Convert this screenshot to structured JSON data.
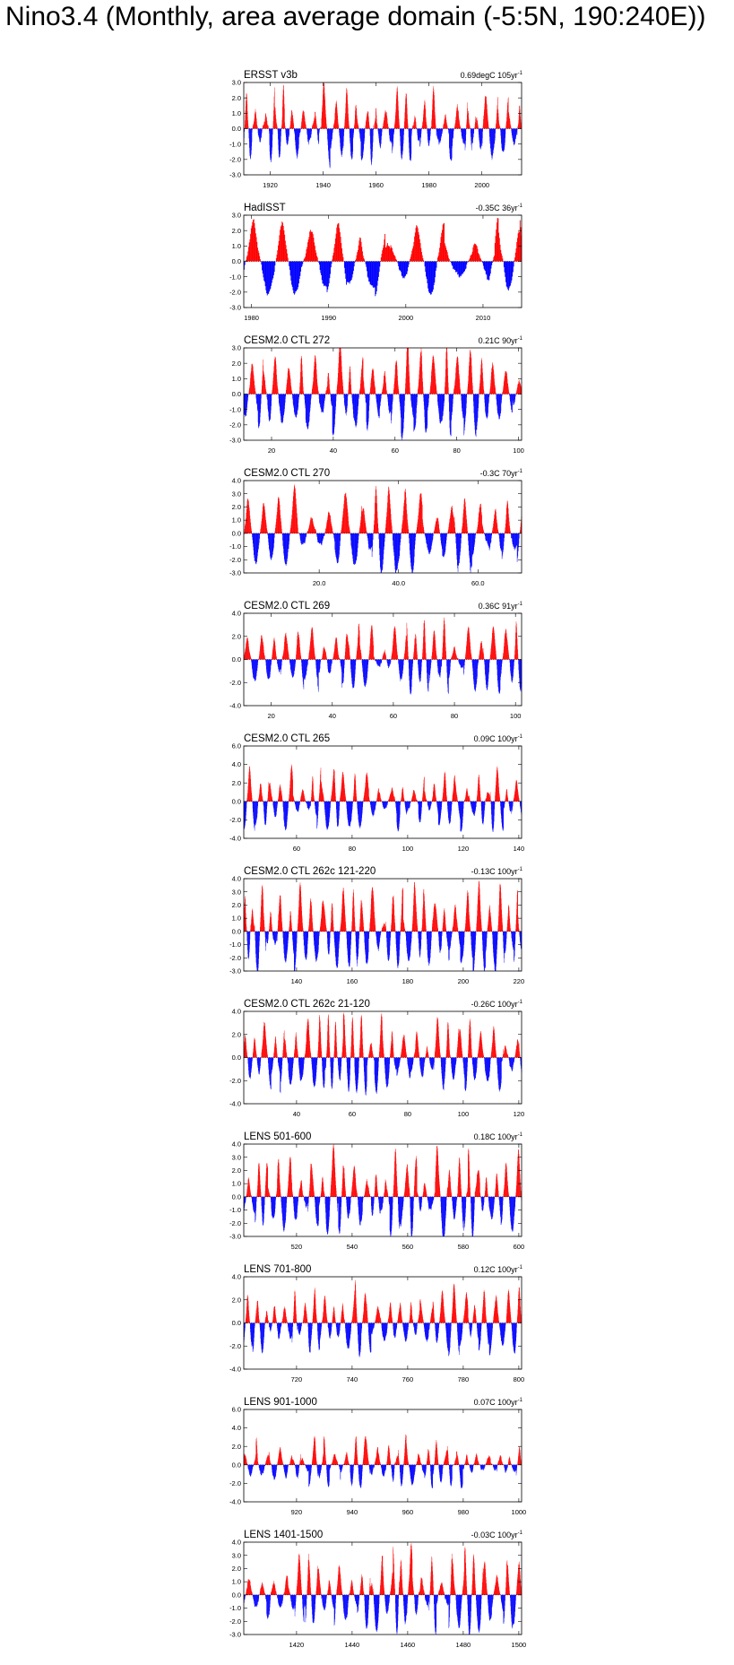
{
  "page_title": "Nino3.4 (Monthly, area average domain (-5:5N, 190:240E))",
  "colors": {
    "positive": "#ff0000",
    "negative": "#0000ff",
    "zero_line": "#000000"
  },
  "chart_data": [
    {
      "type": "bar",
      "title": "ERSST v3b",
      "trend": "0.69degC 105yr",
      "trend_unit_sup": "-1",
      "xlim": [
        1910,
        2015
      ],
      "xticks": [
        1920,
        1940,
        1960,
        1980,
        2000
      ],
      "xtick_labels": [
        "1920",
        "1940",
        "1960",
        "1980",
        "2000"
      ],
      "ylim": [
        -3,
        3
      ],
      "yticks": [
        -3,
        -2,
        -1,
        0,
        1,
        2,
        3
      ],
      "ytick_labels": [
        "-3.0",
        "-2.0",
        "-1.0",
        "0.0",
        "1.0",
        "2.0",
        "3.0"
      ],
      "amp": 1.3,
      "seed": 11
    },
    {
      "type": "bar",
      "title": "HadISST",
      "trend": "-0.35C 36yr",
      "trend_unit_sup": "-1",
      "xlim": [
        1979,
        2015
      ],
      "xticks": [
        1980,
        1990,
        2000,
        2010
      ],
      "xtick_labels": [
        "1980",
        "1990",
        "2000",
        "2010"
      ],
      "ylim": [
        -3,
        3
      ],
      "yticks": [
        -3,
        -2,
        -1,
        0,
        1,
        2,
        3
      ],
      "ytick_labels": [
        "-3.0",
        "-2.0",
        "-1.0",
        "0.0",
        "1.0",
        "2.0",
        "3.0"
      ],
      "amp": 1.8,
      "seed": 23
    },
    {
      "type": "bar",
      "title": "CESM2.0 CTL 272",
      "trend": "0.21C 90yr",
      "trend_unit_sup": "-1",
      "xlim": [
        11,
        101
      ],
      "xticks": [
        20,
        40,
        60,
        80,
        100
      ],
      "xtick_labels": [
        "20",
        "40",
        "60",
        "80",
        "100"
      ],
      "ylim": [
        -3,
        3
      ],
      "yticks": [
        -3,
        -2,
        -1,
        0,
        1,
        2,
        3
      ],
      "ytick_labels": [
        "-3.0",
        "-2.0",
        "-1.0",
        "0.0",
        "1.0",
        "2.0",
        "3.0"
      ],
      "amp": 1.7,
      "seed": 37
    },
    {
      "type": "bar",
      "title": "CESM2.0 CTL 270",
      "trend": "-0.3C 70yr",
      "trend_unit_sup": "-1",
      "xlim": [
        1,
        71
      ],
      "xticks": [
        20,
        40,
        60
      ],
      "xtick_labels": [
        "20.0",
        "40.0",
        "60.0"
      ],
      "ylim": [
        -3,
        4
      ],
      "yticks": [
        -3,
        -2,
        -1,
        0,
        1,
        2,
        3,
        4
      ],
      "ytick_labels": [
        "-3.0",
        "-2.0",
        "-1.0",
        "0.0",
        "1.0",
        "2.0",
        "3.0",
        "4.0"
      ],
      "amp": 1.7,
      "seed": 41
    },
    {
      "type": "bar",
      "title": "CESM2.0 CTL 269",
      "trend": "0.36C 91yr",
      "trend_unit_sup": "-1",
      "xlim": [
        11,
        102
      ],
      "xticks": [
        20,
        40,
        60,
        80,
        100
      ],
      "xtick_labels": [
        "20",
        "40",
        "60",
        "80",
        "100"
      ],
      "ylim": [
        -4,
        4
      ],
      "yticks": [
        -4,
        -2,
        0,
        2,
        4
      ],
      "ytick_labels": [
        "-4.0",
        "-2.0",
        "0.0",
        "2.0",
        "4.0"
      ],
      "amp": 1.8,
      "seed": 53
    },
    {
      "type": "bar",
      "title": "CESM2.0 CTL 265",
      "trend": "0.09C 100yr",
      "trend_unit_sup": "-1",
      "xlim": [
        41,
        141
      ],
      "xticks": [
        60,
        80,
        100,
        120,
        140
      ],
      "xtick_labels": [
        "60",
        "80",
        "100",
        "120",
        "140"
      ],
      "ylim": [
        -4,
        6
      ],
      "yticks": [
        -4,
        -2,
        0,
        2,
        4,
        6
      ],
      "ytick_labels": [
        "-4.0",
        "-2.0",
        "0.0",
        "2.0",
        "4.0",
        "6.0"
      ],
      "amp": 1.8,
      "seed": 61
    },
    {
      "type": "bar",
      "title": "CESM2.0 CTL 262c 121-220",
      "trend": "-0.13C 100yr",
      "trend_unit_sup": "-1",
      "xlim": [
        121,
        221
      ],
      "xticks": [
        140,
        160,
        180,
        200,
        220
      ],
      "xtick_labels": [
        "140",
        "160",
        "180",
        "200",
        "220"
      ],
      "ylim": [
        -3,
        4
      ],
      "yticks": [
        -3,
        -2,
        -1,
        0,
        1,
        2,
        3,
        4
      ],
      "ytick_labels": [
        "-3.0",
        "-2.0",
        "-1.0",
        "0.0",
        "1.0",
        "2.0",
        "3.0",
        "4.0"
      ],
      "amp": 1.8,
      "seed": 71
    },
    {
      "type": "bar",
      "title": "CESM2.0 CTL 262c 21-120",
      "trend": "-0.26C 100yr",
      "trend_unit_sup": "-1",
      "xlim": [
        21,
        121
      ],
      "xticks": [
        40,
        60,
        80,
        100,
        120
      ],
      "xtick_labels": [
        "40",
        "60",
        "80",
        "100",
        "120"
      ],
      "ylim": [
        -4,
        4
      ],
      "yticks": [
        -4,
        -2,
        0,
        2,
        4
      ],
      "ytick_labels": [
        "-4.0",
        "-2.0",
        "0.0",
        "2.0",
        "4.0"
      ],
      "amp": 1.9,
      "seed": 83
    },
    {
      "type": "bar",
      "title": "LENS 501-600",
      "trend": "0.18C 100yr",
      "trend_unit_sup": "-1",
      "xlim": [
        501,
        601
      ],
      "xticks": [
        520,
        540,
        560,
        580,
        600
      ],
      "xtick_labels": [
        "520",
        "540",
        "560",
        "580",
        "600"
      ],
      "ylim": [
        -3,
        4
      ],
      "yticks": [
        -3,
        -2,
        -1,
        0,
        1,
        2,
        3,
        4
      ],
      "ytick_labels": [
        "-3.0",
        "-2.0",
        "-1.0",
        "0.0",
        "1.0",
        "2.0",
        "3.0",
        "4.0"
      ],
      "amp": 1.8,
      "seed": 97
    },
    {
      "type": "bar",
      "title": "LENS 701-800",
      "trend": "0.12C 100yr",
      "trend_unit_sup": "-1",
      "xlim": [
        701,
        801
      ],
      "xticks": [
        720,
        740,
        760,
        780,
        800
      ],
      "xtick_labels": [
        "720",
        "740",
        "760",
        "780",
        "800"
      ],
      "ylim": [
        -4,
        4
      ],
      "yticks": [
        -4,
        -2,
        0,
        2,
        4
      ],
      "ytick_labels": [
        "-4.0",
        "-2.0",
        "0.0",
        "2.0",
        "4.0"
      ],
      "amp": 1.7,
      "seed": 103
    },
    {
      "type": "bar",
      "title": "LENS 901-1000",
      "trend": "0.07C 100yr",
      "trend_unit_sup": "-1",
      "xlim": [
        901,
        1001
      ],
      "xticks": [
        920,
        940,
        960,
        980,
        1000
      ],
      "xtick_labels": [
        "920",
        "940",
        "960",
        "980",
        "1000"
      ],
      "ylim": [
        -4,
        6
      ],
      "yticks": [
        -4,
        -2,
        0,
        2,
        4,
        6
      ],
      "ytick_labels": [
        "-4.0",
        "-2.0",
        "0.0",
        "2.0",
        "4.0",
        "6.0"
      ],
      "amp": 1.5,
      "seed": 113
    },
    {
      "type": "bar",
      "title": "LENS 1401-1500",
      "trend": "-0.03C 100yr",
      "trend_unit_sup": "-1",
      "xlim": [
        1401,
        1501
      ],
      "xticks": [
        1420,
        1440,
        1460,
        1480,
        1500
      ],
      "xtick_labels": [
        "1420",
        "1440",
        "1460",
        "1480",
        "1500"
      ],
      "ylim": [
        -3,
        4
      ],
      "yticks": [
        -3,
        -2,
        -1,
        0,
        1,
        2,
        3,
        4
      ],
      "ytick_labels": [
        "-3.0",
        "-2.0",
        "-1.0",
        "0.0",
        "1.0",
        "2.0",
        "3.0",
        "4.0"
      ],
      "amp": 1.8,
      "seed": 127
    }
  ]
}
